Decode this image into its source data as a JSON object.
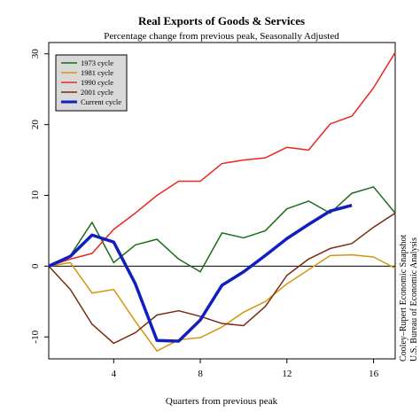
{
  "chart_data": {
    "type": "line",
    "title": "Real Exports of Goods & Services",
    "subtitle": "Percentage change from previous peak, Seasonally Adjusted",
    "x_label": "Quarters from previous peak",
    "side_notes": [
      "Cooley–Rupert Economic Snapshot",
      "U.S. Bureau of Economic Analysis"
    ],
    "x": [
      1,
      2,
      3,
      4,
      5,
      6,
      7,
      8,
      9,
      10,
      11,
      12,
      13,
      14,
      15,
      16,
      17
    ],
    "series": [
      {
        "name": "1973 cycle",
        "color": "#1a6b1a",
        "width": 1.5,
        "values": [
          0,
          1.5,
          6.2,
          0.5,
          3,
          3.8,
          1,
          -0.8,
          4.7,
          4,
          5,
          8.1,
          9.2,
          7.5,
          10.3,
          11.2,
          7.5
        ]
      },
      {
        "name": "1981 cycle",
        "color": "#d4950f",
        "width": 1.5,
        "values": [
          0,
          0.5,
          -3.8,
          -3.3,
          -7.8,
          -12,
          -10.4,
          -10.1,
          -8.6,
          -6.5,
          -5,
          -2.5,
          -0.5,
          1.5,
          1.6,
          1.3,
          -0.3
        ]
      },
      {
        "name": "1990 cycle",
        "color": "#e8281c",
        "width": 1.5,
        "values": [
          0,
          1,
          1.8,
          5.2,
          7.5,
          10,
          12,
          12,
          14.5,
          15,
          15.3,
          16.8,
          16.4,
          20.1,
          21.2,
          25.2,
          30.2
        ]
      },
      {
        "name": "2001 cycle",
        "color": "#7a2a10",
        "width": 1.5,
        "values": [
          0,
          -3.3,
          -8.2,
          -10.9,
          -9.4,
          -6.9,
          -6.3,
          -7.1,
          -8.1,
          -8.4,
          -5.7,
          -1.3,
          1,
          2.5,
          3.2,
          5.5,
          7.5
        ]
      },
      {
        "name": "Current cycle",
        "color": "#1020c0",
        "width": 3.5,
        "values": [
          0,
          1.4,
          4.4,
          3.4,
          -2.5,
          -10.5,
          -10.6,
          -7.6,
          -2.7,
          -0.8,
          1.5,
          3.9,
          5.9,
          7.8,
          8.6,
          null,
          null
        ]
      }
    ],
    "xlim": [
      1,
      17
    ],
    "ylim": [
      -13.1,
      31.6
    ],
    "xticks": [
      4,
      8,
      12,
      16
    ],
    "yticks": [
      -10,
      0,
      10,
      20,
      30
    ],
    "hline": 0,
    "legend": "top-left"
  }
}
